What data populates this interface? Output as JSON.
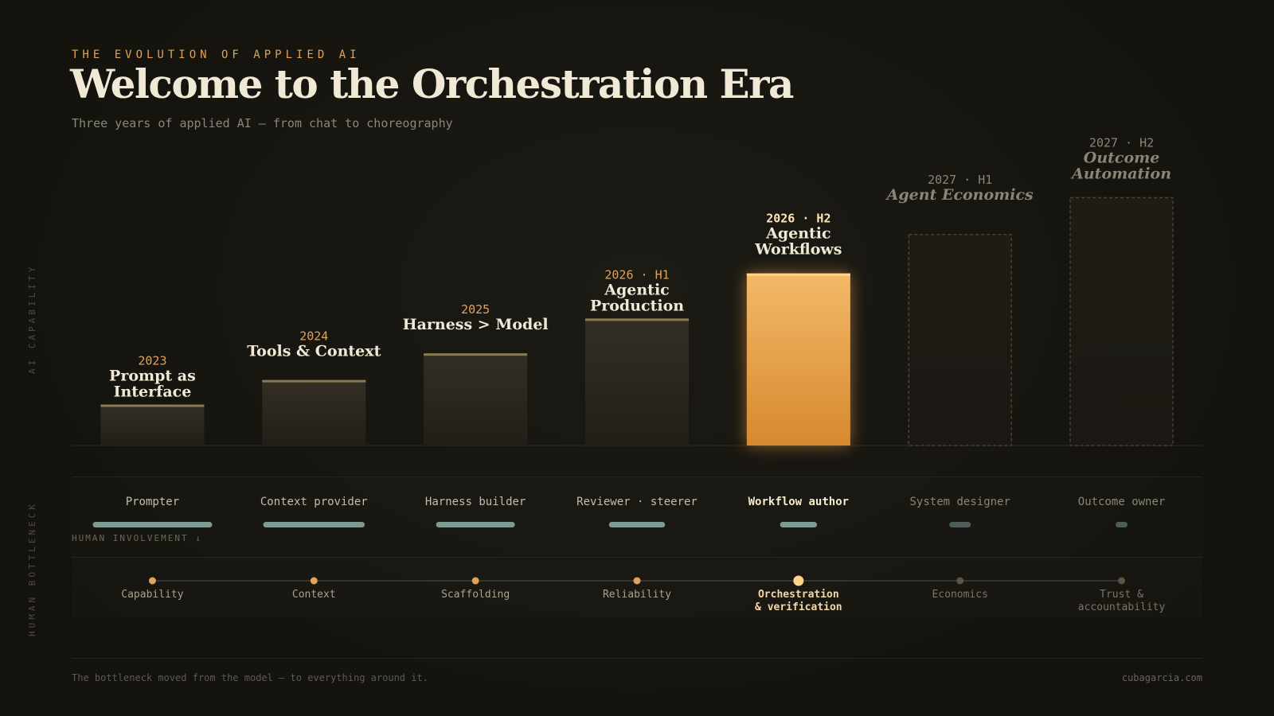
{
  "header": {
    "eyebrow": "THE EVOLUTION OF APPLIED AI",
    "title": "Welcome to the Orchestration Era",
    "subtitle": "Three years of applied AI — from chat to choreography"
  },
  "side_labels": {
    "ai_capability": "AI CAPABILITY",
    "human_bottleneck": "HUMAN BOTTLENECK"
  },
  "human_involvement_label": "HUMAN INVOLVEMENT ↓",
  "chart_data": {
    "type": "bar",
    "title": "Welcome to the Orchestration Era",
    "categories": [
      "2023",
      "2024",
      "2025",
      "2026 · H1",
      "2026 · H2",
      "2027 · H1",
      "2027 · H2"
    ],
    "bar_titles": [
      "Prompt as Interface",
      "Tools & Context",
      "Harness > Model",
      "Agentic Production",
      "Agentic Workflows",
      "Agent Economics",
      "Outcome Automation"
    ],
    "series": [
      {
        "values": [
          1.0,
          1.6,
          2.25,
          3.1,
          4.2,
          5.15,
          6.05
        ]
      }
    ],
    "states": [
      "past",
      "past",
      "past",
      "past",
      "current",
      "projected",
      "projected"
    ],
    "ylim": [
      0,
      6.5
    ],
    "roles": [
      "Prompter",
      "Context provider",
      "Harness builder",
      "Reviewer · steerer",
      "Workflow author",
      "System designer",
      "Outcome owner"
    ],
    "human_involvement": [
      1.0,
      0.85,
      0.66,
      0.47,
      0.31,
      0.18,
      0.1
    ],
    "bottlenecks": [
      "Capability",
      "Context",
      "Scaffolding",
      "Reliability",
      "Orchestration\n& verification",
      "Economics",
      "Trust &\naccountability"
    ],
    "colors": {
      "accent": "#e2a257",
      "bar_past": "#2e2b22",
      "bar_current": "#f0b25e",
      "involvement": "#7f9a92",
      "text": "#efe6d2"
    }
  },
  "footer": {
    "tagline": "The bottleneck moved from the model — to everything around it.",
    "site": "cubagarcia.com"
  }
}
